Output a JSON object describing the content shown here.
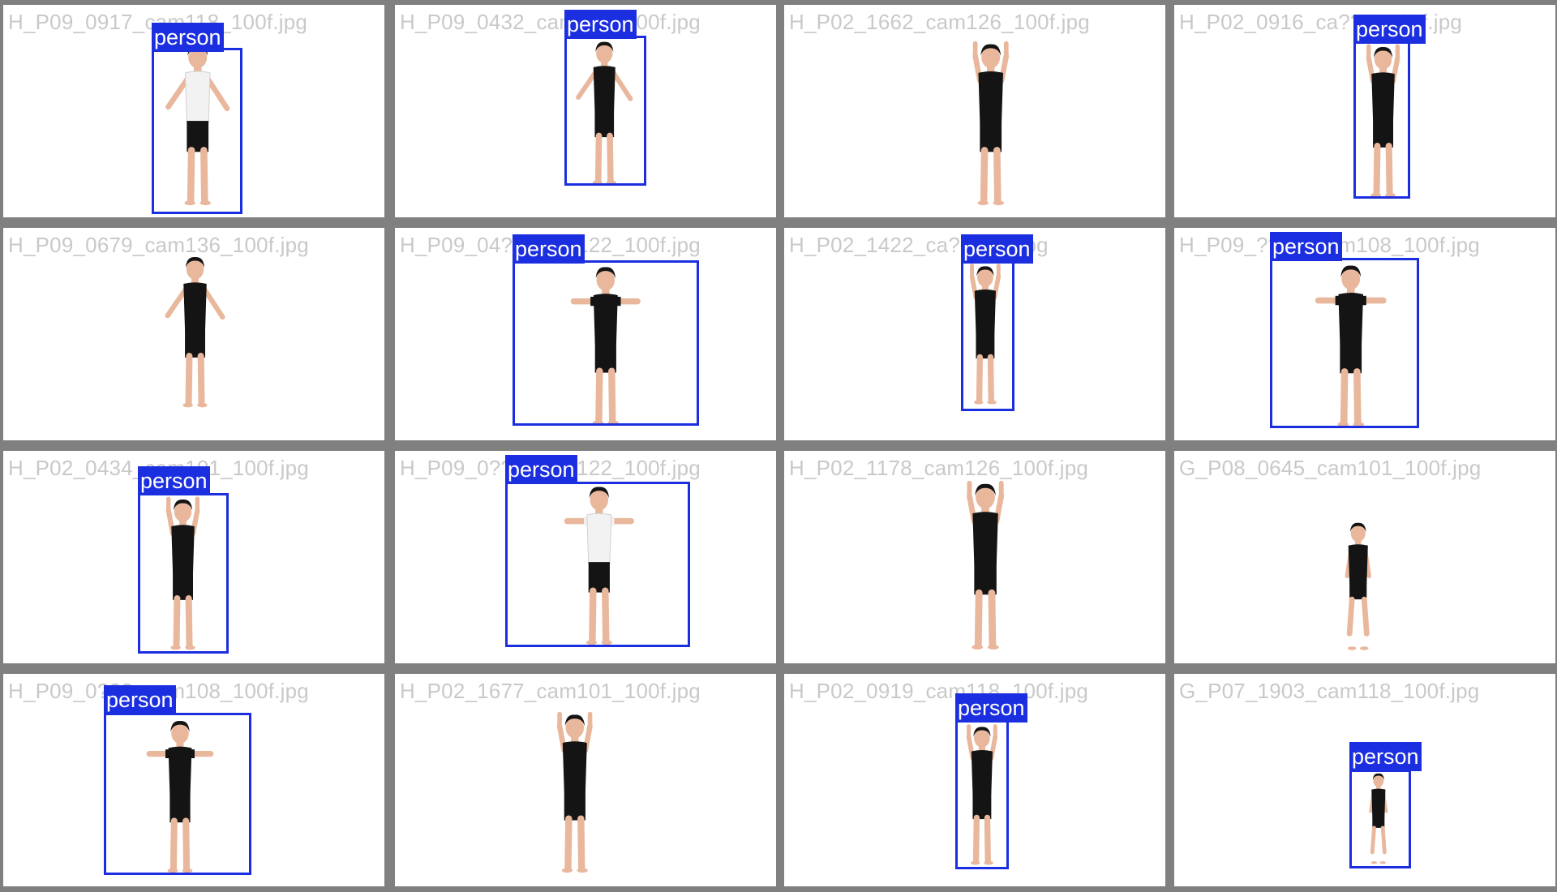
{
  "colors": {
    "box": "#1c2fe0",
    "label_text": "#ffffff",
    "filename_text": "#c9c9c9",
    "background": "#808080",
    "tile": "#ffffff"
  },
  "tiles": [
    {
      "filename": "H_P09_0917_cam118_100f.jpg",
      "label": "person",
      "detected": true,
      "pose": "arms-side",
      "shirt": "white",
      "view": "back"
    },
    {
      "filename": "H_P09_0432_cam???_100f.jpg",
      "label": "person",
      "detected": true,
      "pose": "arms-side",
      "shirt": "black",
      "view": "front"
    },
    {
      "filename": "H_P02_1662_cam126_100f.jpg",
      "label": "",
      "detected": false,
      "pose": "arms-up",
      "shirt": "black",
      "view": "back"
    },
    {
      "filename": "H_P02_0916_ca???_100f.jpg",
      "label": "person",
      "detected": true,
      "pose": "arms-up",
      "shirt": "black",
      "view": "side"
    },
    {
      "filename": "H_P09_0679_cam136_100f.jpg",
      "label": "",
      "detected": false,
      "pose": "arms-side",
      "shirt": "black",
      "view": "front"
    },
    {
      "filename": "H_P09_04??_cam122_100f.jpg",
      "label": "person",
      "detected": true,
      "pose": "t-pose",
      "shirt": "black",
      "view": "back"
    },
    {
      "filename": "H_P02_1422_ca??_50f.jpg",
      "label": "person",
      "detected": true,
      "pose": "arms-up",
      "shirt": "black",
      "view": "side"
    },
    {
      "filename": "H_P09_????_cam108_100f.jpg",
      "label": "person",
      "detected": true,
      "pose": "t-pose",
      "shirt": "black",
      "view": "front"
    },
    {
      "filename": "H_P02_0434_cam101_100f.jpg",
      "label": "person",
      "detected": true,
      "pose": "arms-up",
      "shirt": "black",
      "view": "front"
    },
    {
      "filename": "H_P09_0???_cam122_100f.jpg",
      "label": "person",
      "detected": true,
      "pose": "t-pose",
      "shirt": "white",
      "view": "back"
    },
    {
      "filename": "H_P02_1178_cam126_100f.jpg",
      "label": "",
      "detected": false,
      "pose": "arms-up",
      "shirt": "black",
      "view": "side"
    },
    {
      "filename": "G_P08_0645_cam101_100f.jpg",
      "label": "",
      "detected": false,
      "pose": "squat",
      "shirt": "black",
      "view": "front"
    },
    {
      "filename": "H_P09_0???_cam108_100f.jpg",
      "label": "person",
      "detected": true,
      "pose": "t-pose",
      "shirt": "black",
      "view": "front"
    },
    {
      "filename": "H_P02_1677_cam101_100f.jpg",
      "label": "",
      "detected": false,
      "pose": "arms-up",
      "shirt": "black",
      "view": "front"
    },
    {
      "filename": "H_P02_0919_cam118_100f.jpg",
      "label": "person",
      "detected": true,
      "pose": "arms-up",
      "shirt": "black",
      "view": "side"
    },
    {
      "filename": "G_P07_1903_cam118_100f.jpg",
      "label": "person",
      "detected": true,
      "pose": "squat",
      "shirt": "black",
      "view": "side"
    }
  ]
}
